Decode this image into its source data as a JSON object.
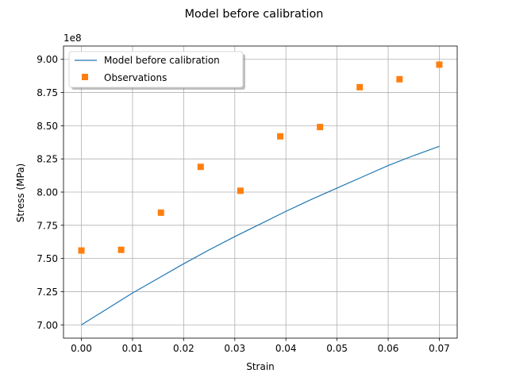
{
  "chart_data": {
    "type": "line",
    "title": "Model before calibration",
    "xlabel": "Strain",
    "ylabel": "Stress (MPa)",
    "y_offset_label": "1e8",
    "xlim": [
      -0.0035,
      0.0735
    ],
    "ylim": [
      690000000.0,
      910000000.0
    ],
    "grid": true,
    "legend_position": "top-left",
    "x_ticks": [
      0.0,
      0.01,
      0.02,
      0.03,
      0.04,
      0.05,
      0.06,
      0.07
    ],
    "x_tick_labels": [
      "0.00",
      "0.01",
      "0.02",
      "0.03",
      "0.04",
      "0.05",
      "0.06",
      "0.07"
    ],
    "y_ticks": [
      700000000.0,
      725000000.0,
      750000000.0,
      775000000.0,
      800000000.0,
      825000000.0,
      850000000.0,
      875000000.0,
      900000000.0
    ],
    "y_tick_labels": [
      "7.00",
      "7.25",
      "7.50",
      "7.75",
      "8.00",
      "8.25",
      "8.50",
      "8.75",
      "9.00"
    ],
    "series": [
      {
        "name": "Model before calibration",
        "kind": "line",
        "color": "#1f77b4",
        "x": [
          0.0,
          0.005,
          0.01,
          0.015,
          0.02,
          0.025,
          0.03,
          0.035,
          0.04,
          0.045,
          0.05,
          0.055,
          0.06,
          0.065,
          0.07
        ],
        "y": [
          700000000.0,
          712000000.0,
          724000000.0,
          735000000.0,
          746000000.0,
          756500000.0,
          766500000.0,
          776000000.0,
          785500000.0,
          794500000.0,
          803000000.0,
          811500000.0,
          820000000.0,
          827500000.0,
          834500000.0
        ]
      },
      {
        "name": "Observations",
        "kind": "scatter",
        "marker": "square",
        "color": "#ff7f0e",
        "x": [
          0.0,
          0.00778,
          0.01556,
          0.02333,
          0.03111,
          0.03889,
          0.04667,
          0.05444,
          0.06222,
          0.07
        ],
        "y": [
          756000000.0,
          756500000.0,
          784500000.0,
          819000000.0,
          801000000.0,
          842000000.0,
          849000000.0,
          879000000.0,
          885000000.0,
          896000000.0
        ]
      }
    ]
  }
}
